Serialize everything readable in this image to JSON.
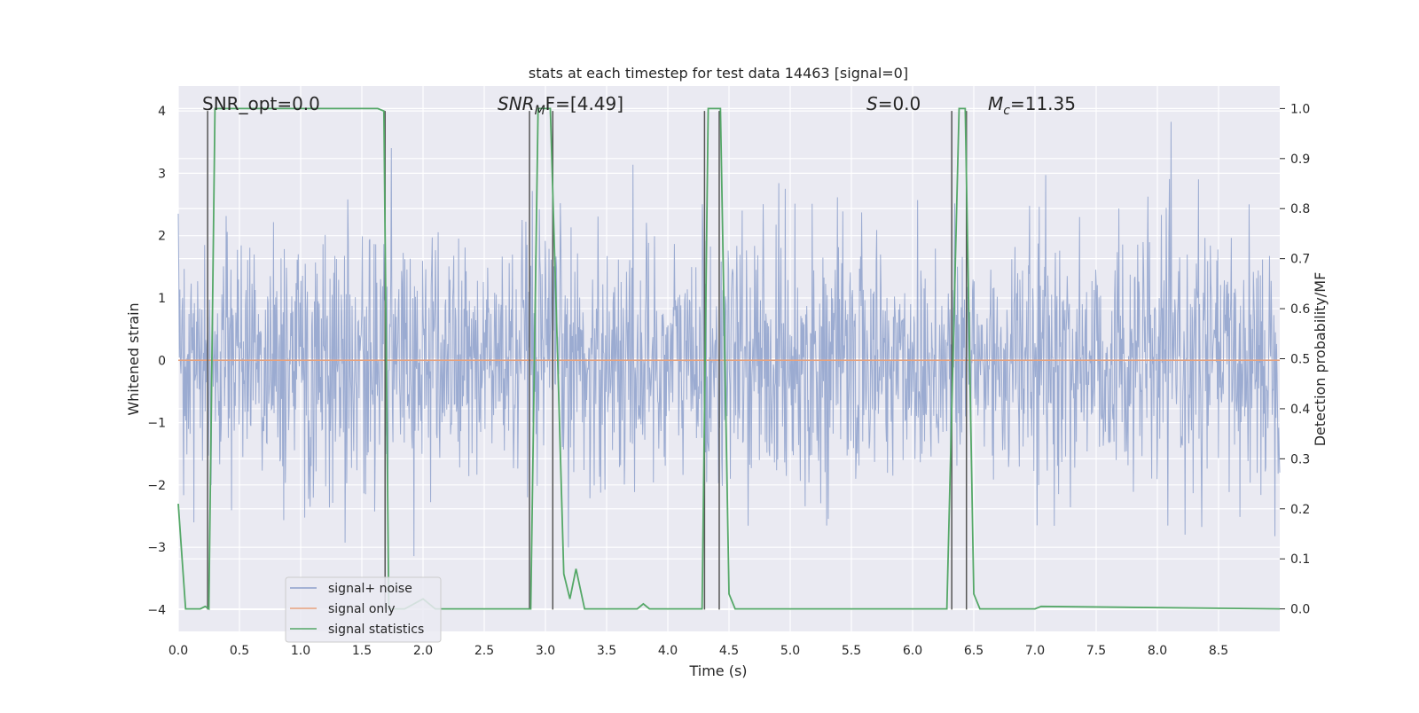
{
  "chart_data": {
    "type": "line",
    "title": "stats at each timestep for test data 14463 [signal=0]",
    "xlabel": "Time (s)",
    "ylabel": "Whitened strain",
    "y2label": "Detection probability/MF",
    "xlim": [
      0,
      9.0
    ],
    "ylim": [
      -4.35,
      4.4
    ],
    "y2lim": [
      -0.045,
      1.045
    ],
    "xticks": [
      "0.0",
      "0.5",
      "1.0",
      "1.5",
      "2.0",
      "2.5",
      "3.0",
      "3.5",
      "4.0",
      "4.5",
      "5.0",
      "5.5",
      "6.0",
      "6.5",
      "7.0",
      "7.5",
      "8.0",
      "8.5"
    ],
    "yticks": [
      "4",
      "3",
      "2",
      "1",
      "0",
      "−1",
      "−2",
      "−3",
      "−4"
    ],
    "y2ticks": [
      "1.0",
      "0.9",
      "0.8",
      "0.7",
      "0.6",
      "0.5",
      "0.4",
      "0.3",
      "0.2",
      "0.1",
      "0.0"
    ],
    "grid": true,
    "legend_position": "lower-left",
    "colors": {
      "background": "#eaeaf2",
      "grid": "#ffffff",
      "noise": "#8da0cb",
      "signal_only": "#e8a27c",
      "statistics": "#55a868",
      "vlines": "#555555"
    },
    "annotations": {
      "snr_opt": "SNR_opt=0.0",
      "snr_mf_main": "SNR",
      "snr_mf_sub": "M",
      "snr_mf_rest": "F=[4.49]",
      "s_main": "S",
      "s_rest": "=0.0",
      "mc_main": "M",
      "mc_sub": "c",
      "mc_rest": "=11.35"
    },
    "series": [
      {
        "name": "signal+ noise",
        "description_kind": "noise",
        "summary": {
          "n_samples": 2048,
          "typical_sigma": 1.0,
          "approx_range": [
            -4.0,
            4.0
          ]
        }
      },
      {
        "name": "signal only",
        "x": [
          0.0,
          9.0
        ],
        "y": [
          0.0,
          0.0
        ]
      },
      {
        "name": "signal statistics",
        "axis": "right",
        "x": [
          0.0,
          0.06,
          0.18,
          0.22,
          0.25,
          0.3,
          1.63,
          1.68,
          1.7,
          1.72,
          1.85,
          2.0,
          2.1,
          2.88,
          2.94,
          3.04,
          3.1,
          3.15,
          3.2,
          3.25,
          3.32,
          3.75,
          3.8,
          3.85,
          4.28,
          4.33,
          4.38,
          4.43,
          4.5,
          4.55,
          6.28,
          6.38,
          6.4,
          6.43,
          6.5,
          6.55,
          7.0,
          7.05,
          9.0
        ],
        "y": [
          0.21,
          0.0,
          0.0,
          0.005,
          0.0,
          1.0,
          1.0,
          0.995,
          0.5,
          0.0,
          0.0,
          0.02,
          0.0,
          0.0,
          1.0,
          1.0,
          0.5,
          0.07,
          0.02,
          0.08,
          0.0,
          0.0,
          0.01,
          0.0,
          0.0,
          1.0,
          1.0,
          1.0,
          0.03,
          0.0,
          0.0,
          1.0,
          1.0,
          1.0,
          0.03,
          0.0,
          0.0,
          0.005,
          0.0
        ]
      }
    ],
    "vlines_x": [
      0.24,
      1.69,
      2.87,
      3.06,
      4.3,
      4.42,
      6.32,
      6.44
    ],
    "vlines_yrange": [
      -4.0,
      4.0
    ]
  }
}
